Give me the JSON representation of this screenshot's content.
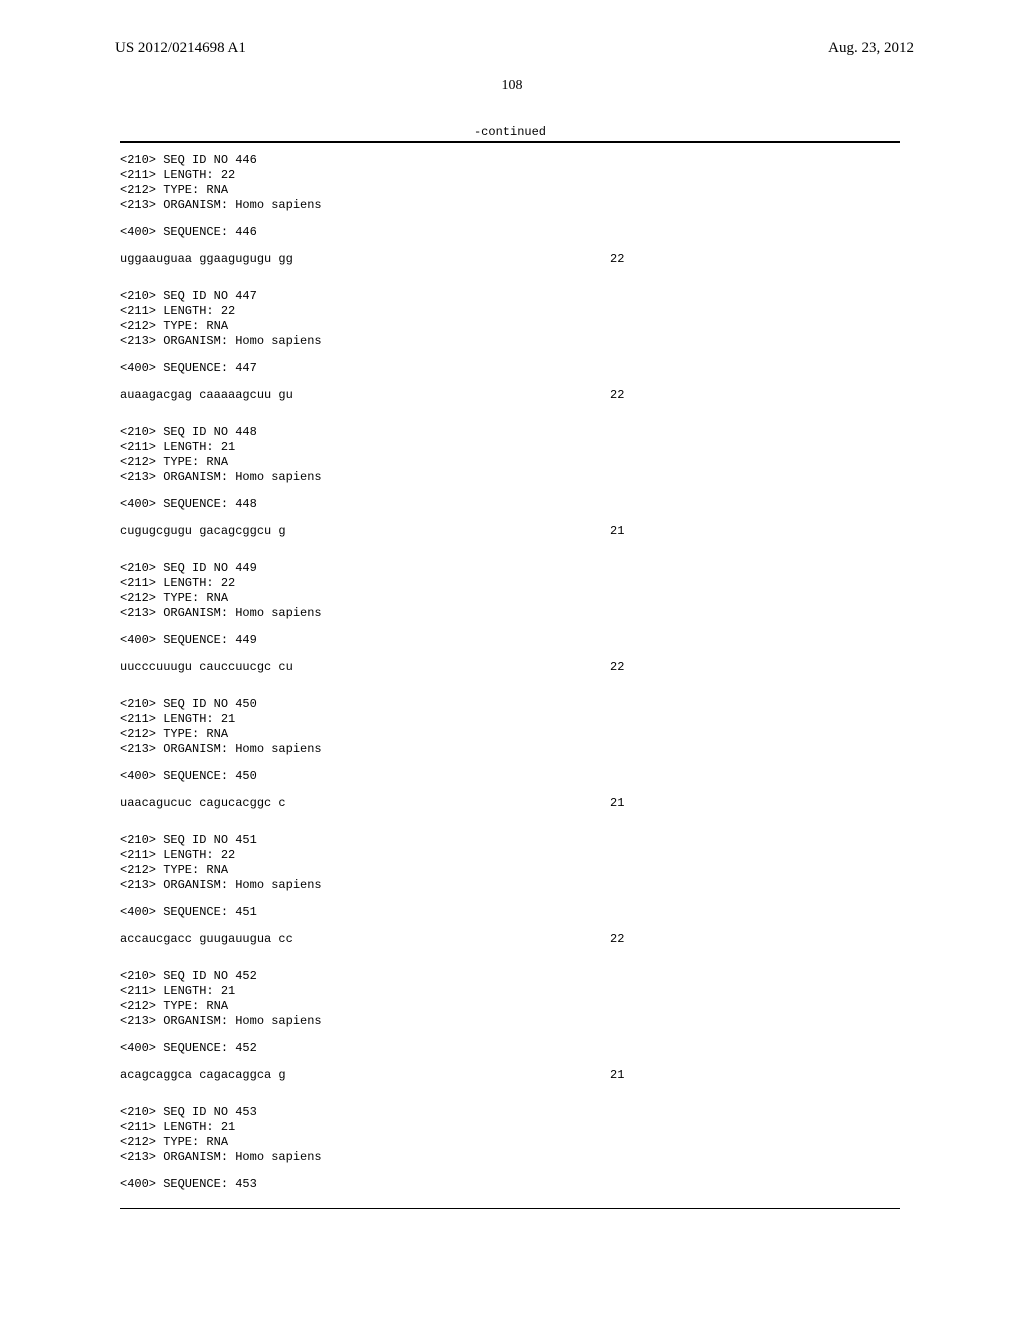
{
  "header": {
    "pub_number": "US 2012/0214698 A1",
    "pub_date": "Aug. 23, 2012"
  },
  "page_number": "108",
  "continued_label": "-continued",
  "sequences": [
    {
      "seq_id": "<210> SEQ ID NO 446",
      "length": "<211> LENGTH: 22",
      "type": "<212> TYPE: RNA",
      "organism": "<213> ORGANISM: Homo sapiens",
      "seq_label": "<400> SEQUENCE: 446",
      "seq_text": "uggaauguaa ggaagugugu gg",
      "seq_num": "22"
    },
    {
      "seq_id": "<210> SEQ ID NO 447",
      "length": "<211> LENGTH: 22",
      "type": "<212> TYPE: RNA",
      "organism": "<213> ORGANISM: Homo sapiens",
      "seq_label": "<400> SEQUENCE: 447",
      "seq_text": "auaagacgag caaaaagcuu gu",
      "seq_num": "22"
    },
    {
      "seq_id": "<210> SEQ ID NO 448",
      "length": "<211> LENGTH: 21",
      "type": "<212> TYPE: RNA",
      "organism": "<213> ORGANISM: Homo sapiens",
      "seq_label": "<400> SEQUENCE: 448",
      "seq_text": "cugugcgugu gacagcggcu g",
      "seq_num": "21"
    },
    {
      "seq_id": "<210> SEQ ID NO 449",
      "length": "<211> LENGTH: 22",
      "type": "<212> TYPE: RNA",
      "organism": "<213> ORGANISM: Homo sapiens",
      "seq_label": "<400> SEQUENCE: 449",
      "seq_text": "uucccuuugu cauccuucgc cu",
      "seq_num": "22"
    },
    {
      "seq_id": "<210> SEQ ID NO 450",
      "length": "<211> LENGTH: 21",
      "type": "<212> TYPE: RNA",
      "organism": "<213> ORGANISM: Homo sapiens",
      "seq_label": "<400> SEQUENCE: 450",
      "seq_text": "uaacagucuc cagucacggc c",
      "seq_num": "21"
    },
    {
      "seq_id": "<210> SEQ ID NO 451",
      "length": "<211> LENGTH: 22",
      "type": "<212> TYPE: RNA",
      "organism": "<213> ORGANISM: Homo sapiens",
      "seq_label": "<400> SEQUENCE: 451",
      "seq_text": "accaucgacc guugauugua cc",
      "seq_num": "22"
    },
    {
      "seq_id": "<210> SEQ ID NO 452",
      "length": "<211> LENGTH: 21",
      "type": "<212> TYPE: RNA",
      "organism": "<213> ORGANISM: Homo sapiens",
      "seq_label": "<400> SEQUENCE: 452",
      "seq_text": "acagcaggca cagacaggca g",
      "seq_num": "21"
    },
    {
      "seq_id": "<210> SEQ ID NO 453",
      "length": "<211> LENGTH: 21",
      "type": "<212> TYPE: RNA",
      "organism": "<213> ORGANISM: Homo sapiens",
      "seq_label": "<400> SEQUENCE: 453",
      "seq_text": "",
      "seq_num": ""
    }
  ]
}
